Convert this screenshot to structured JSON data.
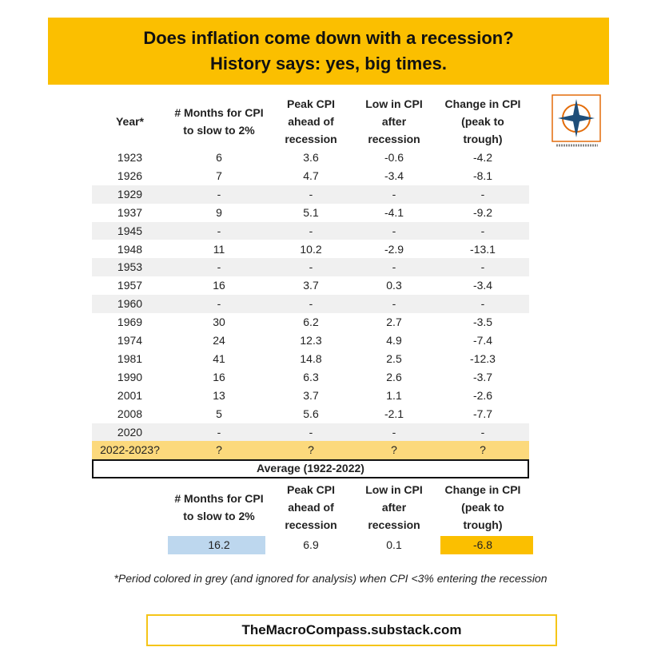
{
  "header": {
    "title_lines": [
      "Does inflation come down with a recession?",
      "History says: yes, big times."
    ]
  },
  "table": {
    "headers": [
      [
        "Year*"
      ],
      [
        "# Months for CPI",
        "to slow to 2%"
      ],
      [
        "Peak CPI",
        "ahead of",
        "recession"
      ],
      [
        "Low in CPI",
        "after",
        "recession"
      ],
      [
        "Change in CPI",
        "(peak to",
        "trough)"
      ]
    ],
    "rows": [
      [
        "1923",
        "6",
        "3.6",
        "-0.6",
        "-4.2"
      ],
      [
        "1926",
        "7",
        "4.7",
        "-3.4",
        "-8.1"
      ],
      [
        "1929",
        "-",
        "-",
        "-",
        "-"
      ],
      [
        "1937",
        "9",
        "5.1",
        "-4.1",
        "-9.2"
      ],
      [
        "1945",
        "-",
        "-",
        "-",
        "-"
      ],
      [
        "1948",
        "11",
        "10.2",
        "-2.9",
        "-13.1"
      ],
      [
        "1953",
        "-",
        "-",
        "-",
        "-"
      ],
      [
        "1957",
        "16",
        "3.7",
        "0.3",
        "-3.4"
      ],
      [
        "1960",
        "-",
        "-",
        "-",
        "-"
      ],
      [
        "1969",
        "30",
        "6.2",
        "2.7",
        "-3.5"
      ],
      [
        "1974",
        "24",
        "12.3",
        "4.9",
        "-7.4"
      ],
      [
        "1981",
        "41",
        "14.8",
        "2.5",
        "-12.3"
      ],
      [
        "1990",
        "16",
        "6.3",
        "2.6",
        "-3.7"
      ],
      [
        "2001",
        "13",
        "3.7",
        "1.1",
        "-2.6"
      ],
      [
        "2008",
        "5",
        "5.6",
        "-2.1",
        "-7.7"
      ],
      [
        "2020",
        "-",
        "-",
        "-",
        "-"
      ],
      [
        "2022-2023?",
        "?",
        "?",
        "?",
        "?"
      ]
    ]
  },
  "average": {
    "title": "Average (1922-2022)",
    "headers": [
      [
        "# Months for CPI",
        "to slow to 2%"
      ],
      [
        "Peak CPI",
        "ahead of",
        "recession"
      ],
      [
        "Low in CPI",
        "after",
        "recession"
      ],
      [
        "Change in CPI",
        "(peak to",
        "trough)"
      ]
    ],
    "values": [
      "16.2",
      "6.9",
      "0.1",
      "-6.8"
    ]
  },
  "footnote": "*Period colored in grey (and ignored for analysis) when CPI  <3% entering the recession",
  "footer": "TheMacroCompass.substack.com"
}
